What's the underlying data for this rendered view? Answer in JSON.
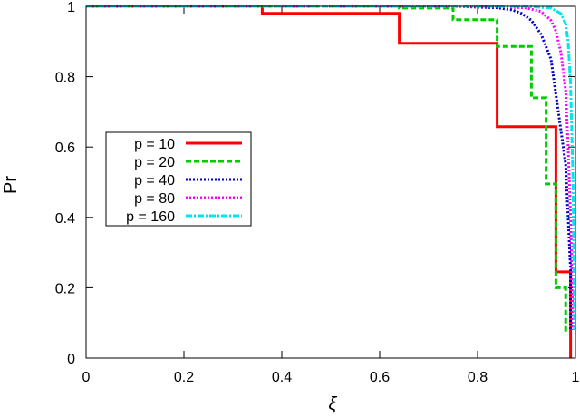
{
  "chart_data": {
    "type": "line",
    "xlabel": "ξ",
    "ylabel": "Pr",
    "xlim": [
      0,
      1
    ],
    "ylim": [
      0,
      1
    ],
    "xticks": [
      0,
      0.2,
      0.4,
      0.6,
      0.8,
      1
    ],
    "yticks": [
      0,
      0.2,
      0.4,
      0.6,
      0.8,
      1
    ],
    "xtick_labels": [
      "0",
      "0.2",
      "0.4",
      "0.6",
      "0.8",
      "1"
    ],
    "ytick_labels": [
      "0",
      "0.2",
      "0.4",
      "0.6",
      "0.8",
      "1"
    ],
    "grid": false,
    "legend_position": "center-left",
    "series": [
      {
        "name": "p = 10",
        "color": "#ff0000",
        "dash": "solid",
        "x": [
          0,
          0.36,
          0.36,
          0.64,
          0.64,
          0.84,
          0.84,
          0.96,
          0.96,
          0.99,
          0.99
        ],
        "y": [
          1.0,
          1.0,
          0.98,
          0.98,
          0.895,
          0.895,
          0.658,
          0.658,
          0.245,
          0.245,
          0.0
        ]
      },
      {
        "name": "p = 20",
        "color": "#00cc00",
        "dash": "dashed",
        "x": [
          0,
          0.64,
          0.64,
          0.75,
          0.75,
          0.84,
          0.84,
          0.91,
          0.91,
          0.94,
          0.94,
          0.96,
          0.96,
          0.98,
          0.98
        ],
        "y": [
          1.0,
          1.0,
          0.995,
          0.995,
          0.962,
          0.962,
          0.886,
          0.886,
          0.74,
          0.74,
          0.495,
          0.495,
          0.2,
          0.2,
          0.07
        ]
      },
      {
        "name": "p = 40",
        "color": "#0000cc",
        "dash": "dotted",
        "x": [
          0,
          0.75,
          0.84,
          0.87,
          0.87,
          0.89,
          0.89,
          0.91,
          0.91,
          0.93,
          0.93,
          0.95,
          0.95,
          0.965,
          0.965,
          0.98,
          0.98,
          0.99,
          0.99
        ],
        "y": [
          1.0,
          1.0,
          0.996,
          0.99,
          0.99,
          0.98,
          0.98,
          0.96,
          0.96,
          0.92,
          0.92,
          0.85,
          0.85,
          0.7,
          0.7,
          0.55,
          0.55,
          0.25,
          0.08
        ]
      },
      {
        "name": "p = 80",
        "color": "#ff00ff",
        "dash": "dotted",
        "x": [
          0,
          0.84,
          0.9,
          0.93,
          0.95,
          0.96,
          0.97,
          0.98,
          0.985,
          0.99,
          0.995
        ],
        "y": [
          1.0,
          1.0,
          0.995,
          0.985,
          0.96,
          0.93,
          0.87,
          0.76,
          0.6,
          0.4,
          0.08
        ]
      },
      {
        "name": "p = 160",
        "color": "#00e5ee",
        "dash": "dashdot",
        "x": [
          0,
          0.9,
          0.95,
          0.97,
          0.98,
          0.985,
          0.99,
          0.995,
          0.998
        ],
        "y": [
          1.0,
          1.0,
          0.995,
          0.98,
          0.95,
          0.9,
          0.78,
          0.5,
          0.08
        ]
      }
    ]
  }
}
